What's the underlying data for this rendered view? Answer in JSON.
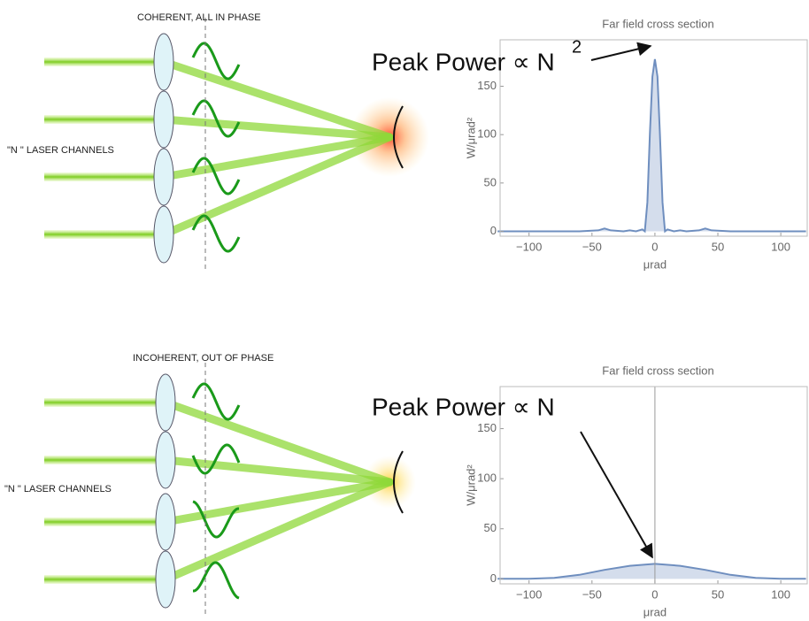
{
  "panels": [
    {
      "label": "COHERENT, ALL IN PHASE",
      "channels_label": "\"N \" LASER CHANNELS",
      "annotation": "Peak Power ∝ N",
      "annotation_sup": "2",
      "chart": {
        "type": "area",
        "title": "Far field cross section",
        "xlabel": "μrad",
        "ylabel": "W/μrad²",
        "color": "#6f8fbf",
        "x": [
          -125,
          -60,
          -45,
          -40,
          -35,
          -25,
          -20,
          -15,
          -10,
          -8,
          -6,
          -4,
          -2,
          0,
          2,
          4,
          6,
          8,
          10,
          15,
          20,
          25,
          35,
          40,
          45,
          60,
          120
        ],
        "values": [
          0,
          0,
          1,
          3,
          1,
          0,
          1,
          0,
          2,
          0,
          30,
          100,
          160,
          178,
          160,
          100,
          30,
          0,
          2,
          0,
          1,
          0,
          1,
          3,
          1,
          0,
          0
        ],
        "xlim": [
          -123,
          121
        ],
        "ylim": [
          -5,
          198
        ],
        "xticks": [
          {
            "value": -100,
            "label": "−100"
          },
          {
            "value": -50,
            "label": "−50"
          },
          0,
          50,
          100
        ],
        "yticks": [
          0,
          50,
          100,
          150
        ]
      }
    },
    {
      "label": "INCOHERENT, OUT OF PHASE",
      "channels_label": "\"N \" LASER CHANNELS",
      "annotation": "Peak Power ∝ N",
      "chart": {
        "type": "area",
        "title": "Far field cross section",
        "xlabel": "μrad",
        "ylabel": "W/μrad²",
        "color": "#6f8fbf",
        "x": [
          -125,
          -100,
          -80,
          -60,
          -40,
          -20,
          0,
          20,
          40,
          60,
          80,
          100,
          120
        ],
        "values": [
          0,
          0,
          1,
          4,
          9,
          13,
          15,
          13,
          9,
          4,
          1,
          0,
          0
        ],
        "xlim": [
          -123,
          121
        ],
        "ylim": [
          -5,
          192
        ],
        "xticks": [
          {
            "value": -100,
            "label": "−100"
          },
          {
            "value": -50,
            "label": "−50"
          },
          0,
          50,
          100
        ],
        "yticks": [
          0,
          50,
          100,
          150
        ]
      }
    }
  ]
}
